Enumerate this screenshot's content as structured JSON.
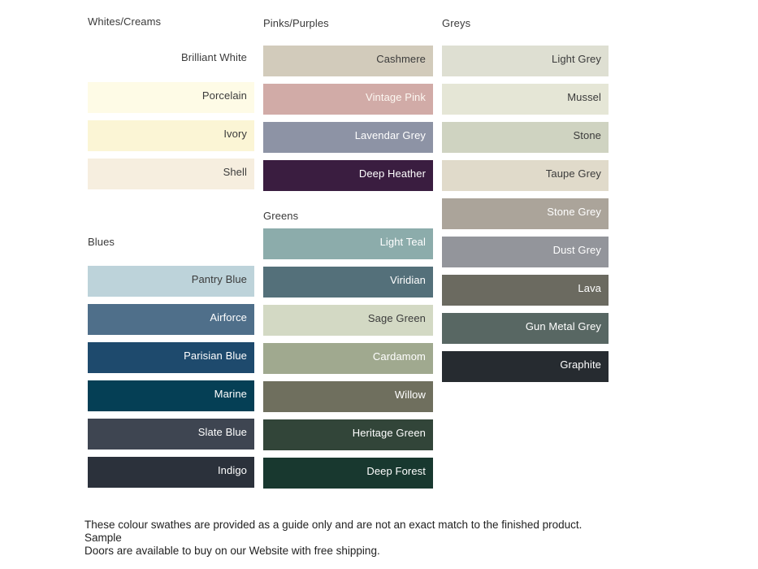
{
  "page": {
    "background": "#FFFFFF",
    "text_dark": "#3B3B3B",
    "text_light": "#FFFFFF"
  },
  "footer": {
    "line1": "These colour swathes are provided as a guide only and are not an exact match to the finished product.  Sample",
    "line2": "Doors are available to buy on our Website with free shipping."
  },
  "groups": [
    {
      "title": "Whites/Creams",
      "swatches": [
        {
          "label": "Brilliant White",
          "color": "#FFFFFF",
          "text_color": "#3B3B3B"
        },
        {
          "label": "Porcelain",
          "color": "#FEFBE6",
          "text_color": "#3B3B3B"
        },
        {
          "label": "Ivory",
          "color": "#FBF5D5",
          "text_color": "#3B3B3B"
        },
        {
          "label": "Shell",
          "color": "#F6EEDF",
          "text_color": "#3B3B3B"
        }
      ]
    },
    {
      "title": "Blues",
      "swatches": [
        {
          "label": "Pantry Blue",
          "color": "#BDD3DA",
          "text_color": "#3B3B3B"
        },
        {
          "label": "Airforce",
          "color": "#4F6F8A",
          "text_color": "#FFFFFF"
        },
        {
          "label": "Parisian Blue",
          "color": "#1E4A6D",
          "text_color": "#FFFFFF"
        },
        {
          "label": "Marine",
          "color": "#053F55",
          "text_color": "#FFFFFF"
        },
        {
          "label": "Slate Blue",
          "color": "#3E4551",
          "text_color": "#FFFFFF"
        },
        {
          "label": "Indigo",
          "color": "#2B313B",
          "text_color": "#FFFFFF"
        }
      ]
    },
    {
      "title": "Pinks/Purples",
      "swatches": [
        {
          "label": "Cashmere",
          "color": "#D2CBBB",
          "text_color": "#3B3B3B"
        },
        {
          "label": "Vintage Pink",
          "color": "#D1ABA7",
          "text_color": "#FDF8F2"
        },
        {
          "label": "Lavendar Grey",
          "color": "#8D93A5",
          "text_color": "#FFFFFF"
        },
        {
          "label": "Deep Heather",
          "color": "#3A1D40",
          "text_color": "#FFFFFF"
        }
      ]
    },
    {
      "title": "Greens",
      "swatches": [
        {
          "label": "Light Teal",
          "color": "#8CACAB",
          "text_color": "#FFFFFF"
        },
        {
          "label": "Viridian",
          "color": "#54707A",
          "text_color": "#FFFFFF"
        },
        {
          "label": "Sage Green",
          "color": "#D3D9C4",
          "text_color": "#3B3B3B"
        },
        {
          "label": "Cardamom",
          "color": "#A0A98F",
          "text_color": "#FFFFFF"
        },
        {
          "label": "Willow",
          "color": "#6F6F5E",
          "text_color": "#FFFFFF"
        },
        {
          "label": "Heritage Green",
          "color": "#324539",
          "text_color": "#FFFFFF"
        },
        {
          "label": "Deep Forest",
          "color": "#18382F",
          "text_color": "#FFFFFF"
        }
      ]
    },
    {
      "title": "Greys",
      "swatches": [
        {
          "label": "Light Grey",
          "color": "#DEDFD2",
          "text_color": "#3B3B3B"
        },
        {
          "label": "Mussel",
          "color": "#E5E6D6",
          "text_color": "#3B3B3B"
        },
        {
          "label": "Stone",
          "color": "#CFD3C1",
          "text_color": "#3B3B3B"
        },
        {
          "label": "Taupe Grey",
          "color": "#E0DACA",
          "text_color": "#3B3B3B"
        },
        {
          "label": "Stone Grey",
          "color": "#ABA49A",
          "text_color": "#FFFFFF"
        },
        {
          "label": "Dust Grey",
          "color": "#93959B",
          "text_color": "#FFFFFF"
        },
        {
          "label": "Lava",
          "color": "#6B6A60",
          "text_color": "#FFFFFF"
        },
        {
          "label": "Gun Metal Grey",
          "color": "#586763",
          "text_color": "#FFFFFF"
        },
        {
          "label": "Graphite",
          "color": "#262B30",
          "text_color": "#FFFFFF"
        }
      ]
    }
  ]
}
